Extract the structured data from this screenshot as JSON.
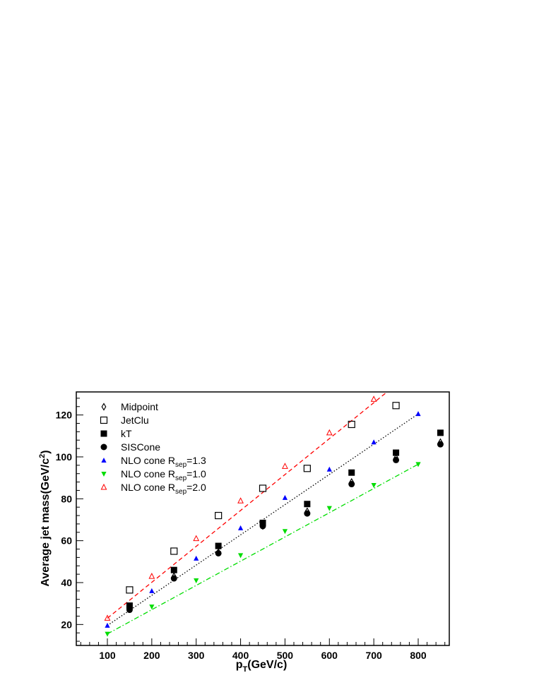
{
  "chart_data": {
    "type": "scatter",
    "title": "",
    "xlabel": "p_T(GeV/c)",
    "ylabel": "Average jet mass(GeV/c^2)",
    "xlim": [
      30,
      870
    ],
    "ylim": [
      10,
      131
    ],
    "x_ticks": [
      100,
      200,
      300,
      400,
      500,
      600,
      700,
      800
    ],
    "y_ticks": [
      20,
      40,
      60,
      80,
      100,
      120
    ],
    "grid": false,
    "legend_position": "top-left",
    "series": [
      {
        "name": "Midpoint",
        "marker": "open-diamond",
        "color": "#000000",
        "x": [
          150,
          250,
          350,
          450,
          550,
          650,
          750,
          850
        ],
        "y": [
          28,
          43,
          54.5,
          67,
          74,
          88,
          99.5,
          107
        ]
      },
      {
        "name": "JetClu",
        "marker": "open-square",
        "color": "#000000",
        "x": [
          150,
          250,
          350,
          450,
          550,
          650,
          750,
          850
        ],
        "y": [
          36.5,
          55,
          72,
          85,
          94.5,
          115.5,
          124.5,
          null
        ]
      },
      {
        "name": "kT",
        "marker": "filled-square",
        "color": "#000000",
        "x": [
          150,
          250,
          350,
          450,
          550,
          650,
          750,
          850
        ],
        "y": [
          29,
          46,
          57.5,
          68.5,
          77.5,
          92.5,
          102,
          111.5
        ]
      },
      {
        "name": "SISCone",
        "marker": "filled-circle",
        "color": "#000000",
        "x": [
          150,
          250,
          350,
          450,
          550,
          650,
          750,
          850
        ],
        "y": [
          27,
          42,
          54,
          67,
          73,
          87,
          98.5,
          106
        ]
      },
      {
        "name": "NLO cone R_sep=1.3",
        "marker": "filled-triangle-up",
        "color": "#0000ff",
        "line": "dotted",
        "line_color": "#000000",
        "x": [
          100,
          200,
          300,
          400,
          500,
          600,
          700,
          800
        ],
        "y": [
          19.5,
          36,
          51.5,
          66,
          80.5,
          94,
          107,
          120.5
        ]
      },
      {
        "name": "NLO cone R_sep=1.0",
        "marker": "filled-triangle-down",
        "color": "#00dd00",
        "line": "dash-dot",
        "line_color": "#00dd00",
        "x": [
          100,
          200,
          300,
          400,
          500,
          600,
          700,
          800
        ],
        "y": [
          15.5,
          28.5,
          41,
          53,
          64.5,
          75.5,
          86.5,
          96.5
        ]
      },
      {
        "name": "NLO cone R_sep=2.0",
        "marker": "open-triangle-up",
        "color": "#ff0000",
        "line": "dashed",
        "line_color": "#ff0000",
        "x": [
          100,
          200,
          300,
          400,
          500,
          600,
          700
        ],
        "y": [
          23,
          43,
          61,
          79,
          95.5,
          111.5,
          127.5
        ]
      }
    ],
    "fits": [
      {
        "series": "NLO cone R_sep=1.3",
        "x": [
          100,
          800
        ],
        "y": [
          19.5,
          120.5
        ]
      },
      {
        "series": "NLO cone R_sep=1.0",
        "x": [
          100,
          800
        ],
        "y": [
          15.5,
          96.5
        ]
      },
      {
        "series": "NLO cone R_sep=2.0",
        "x": [
          100,
          730
        ],
        "y": [
          23,
          131
        ]
      }
    ],
    "legend": [
      {
        "main": "Midpoint",
        "sub": "",
        "post": ""
      },
      {
        "main": "JetClu",
        "sub": "",
        "post": ""
      },
      {
        "main": "kT",
        "sub": "",
        "post": ""
      },
      {
        "main": "SISCone",
        "sub": "",
        "post": ""
      },
      {
        "main": "NLO cone R",
        "sub": "sep",
        "post": "=1.3"
      },
      {
        "main": "NLO cone R",
        "sub": "sep",
        "post": "=1.0"
      },
      {
        "main": "NLO cone R",
        "sub": "sep",
        "post": "=2.0"
      }
    ],
    "xlabel_parts": {
      "main": "p",
      "sub": "T",
      "post": "(GeV/c)"
    },
    "ylabel_parts": {
      "main": "Average jet mass(GeV/c",
      "sup": "2",
      "post": ")"
    }
  }
}
